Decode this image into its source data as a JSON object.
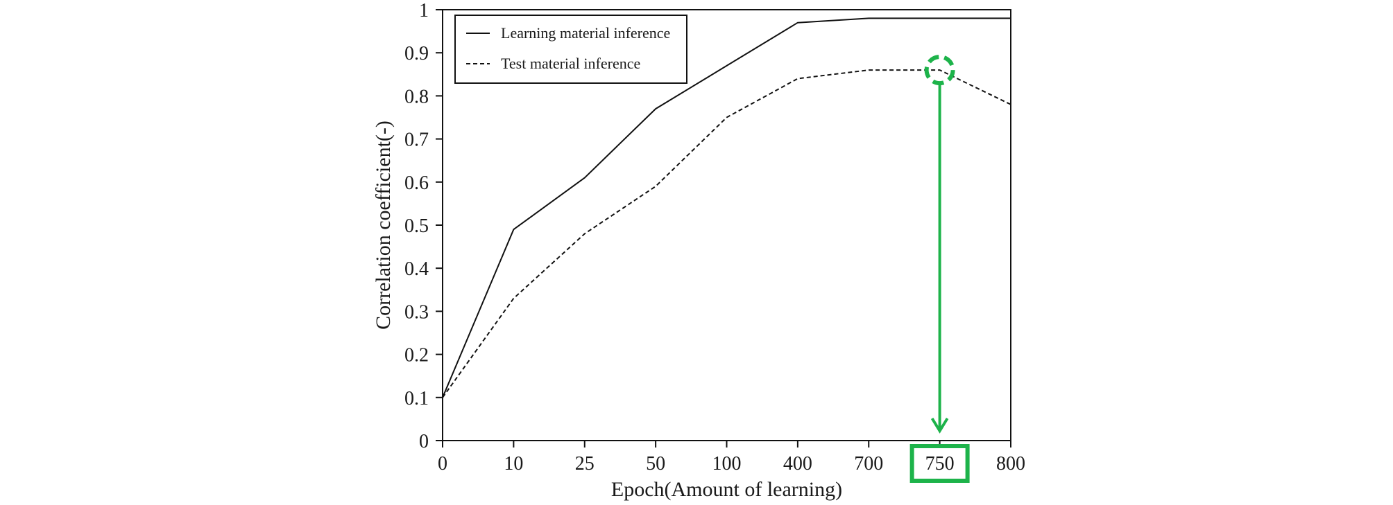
{
  "chart_data": {
    "type": "line",
    "xlabel": "Epoch(Amount of learning)",
    "ylabel": "Correlation coefficient(-)",
    "categories": [
      "0",
      "10",
      "25",
      "50",
      "100",
      "400",
      "700",
      "750",
      "800"
    ],
    "ylim": [
      0,
      1
    ],
    "yticks": [
      "0",
      "0.1",
      "0.2",
      "0.3",
      "0.4",
      "0.5",
      "0.6",
      "0.7",
      "0.8",
      "0.9",
      "1"
    ],
    "grid": false,
    "legend_position": "top-left",
    "series": [
      {
        "name": "Learning material inference",
        "line_style": "solid",
        "values": [
          0.1,
          0.49,
          0.61,
          0.77,
          0.87,
          0.97,
          0.98,
          0.98,
          0.98
        ]
      },
      {
        "name": "Test material inference",
        "line_style": "dashed",
        "values": [
          0.1,
          0.33,
          0.48,
          0.59,
          0.75,
          0.84,
          0.86,
          0.86,
          0.78
        ]
      }
    ],
    "annotation": {
      "highlighted_category": "750",
      "highlighted_series": "Test material inference",
      "highlighted_value": 0.86,
      "color": "#1db34a"
    }
  }
}
